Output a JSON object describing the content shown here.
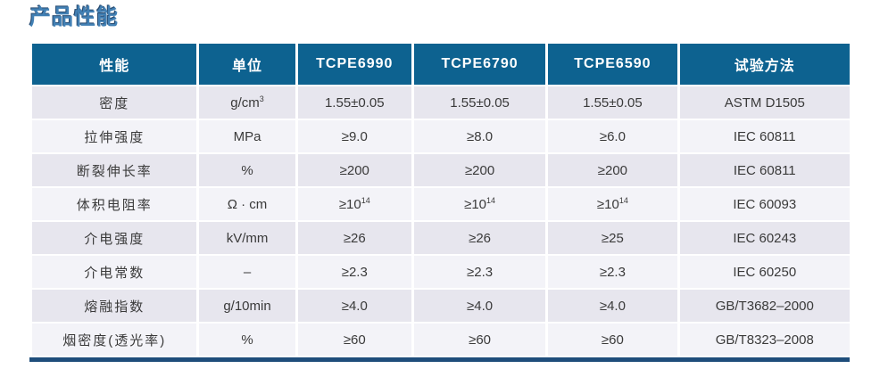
{
  "page_title": "产品性能",
  "colors": {
    "header_bg": "#0d6290",
    "row_odd_bg": "#e7e6ee",
    "row_even_bg": "#f3f3f8",
    "bottom_bar": "#1e4d7b",
    "title_blue": "#4280b4",
    "body_text": "#3a3a3a"
  },
  "table": {
    "headers": [
      "性能",
      "单位",
      "TCPE6990",
      "TCPE6790",
      "TCPE6590",
      "试验方法"
    ],
    "rows": [
      {
        "property": "密度",
        "unit": {
          "base": "g/cm",
          "sup": "3"
        },
        "values": [
          {
            "base": "1.55±0.05",
            "sup": ""
          },
          {
            "base": "1.55±0.05",
            "sup": ""
          },
          {
            "base": "1.55±0.05",
            "sup": ""
          }
        ],
        "method": "ASTM D1505"
      },
      {
        "property": "拉伸强度",
        "unit": {
          "base": "MPa",
          "sup": ""
        },
        "values": [
          {
            "base": "≥9.0",
            "sup": ""
          },
          {
            "base": "≥8.0",
            "sup": ""
          },
          {
            "base": "≥6.0",
            "sup": ""
          }
        ],
        "method": "IEC 60811"
      },
      {
        "property": "断裂伸长率",
        "unit": {
          "base": "%",
          "sup": ""
        },
        "values": [
          {
            "base": "≥200",
            "sup": ""
          },
          {
            "base": "≥200",
            "sup": ""
          },
          {
            "base": "≥200",
            "sup": ""
          }
        ],
        "method": "IEC 60811"
      },
      {
        "property": "体积电阻率",
        "unit": {
          "base": "Ω · cm",
          "sup": ""
        },
        "values": [
          {
            "base": "≥10",
            "sup": "14"
          },
          {
            "base": "≥10",
            "sup": "14"
          },
          {
            "base": "≥10",
            "sup": "14"
          }
        ],
        "method": "IEC 60093"
      },
      {
        "property": "介电强度",
        "unit": {
          "base": "kV/mm",
          "sup": ""
        },
        "values": [
          {
            "base": "≥26",
            "sup": ""
          },
          {
            "base": "≥26",
            "sup": ""
          },
          {
            "base": "≥25",
            "sup": ""
          }
        ],
        "method": "IEC 60243"
      },
      {
        "property": "介电常数",
        "unit": {
          "base": "–",
          "sup": ""
        },
        "values": [
          {
            "base": "≥2.3",
            "sup": ""
          },
          {
            "base": "≥2.3",
            "sup": ""
          },
          {
            "base": "≥2.3",
            "sup": ""
          }
        ],
        "method": "IEC 60250"
      },
      {
        "property": "熔融指数",
        "unit": {
          "base": "g/10min",
          "sup": ""
        },
        "values": [
          {
            "base": "≥4.0",
            "sup": ""
          },
          {
            "base": "≥4.0",
            "sup": ""
          },
          {
            "base": "≥4.0",
            "sup": ""
          }
        ],
        "method": "GB/T3682–2000"
      },
      {
        "property": "烟密度(透光率)",
        "unit": {
          "base": "%",
          "sup": ""
        },
        "values": [
          {
            "base": "≥60",
            "sup": ""
          },
          {
            "base": "≥60",
            "sup": ""
          },
          {
            "base": "≥60",
            "sup": ""
          }
        ],
        "method": "GB/T8323–2008"
      }
    ]
  }
}
